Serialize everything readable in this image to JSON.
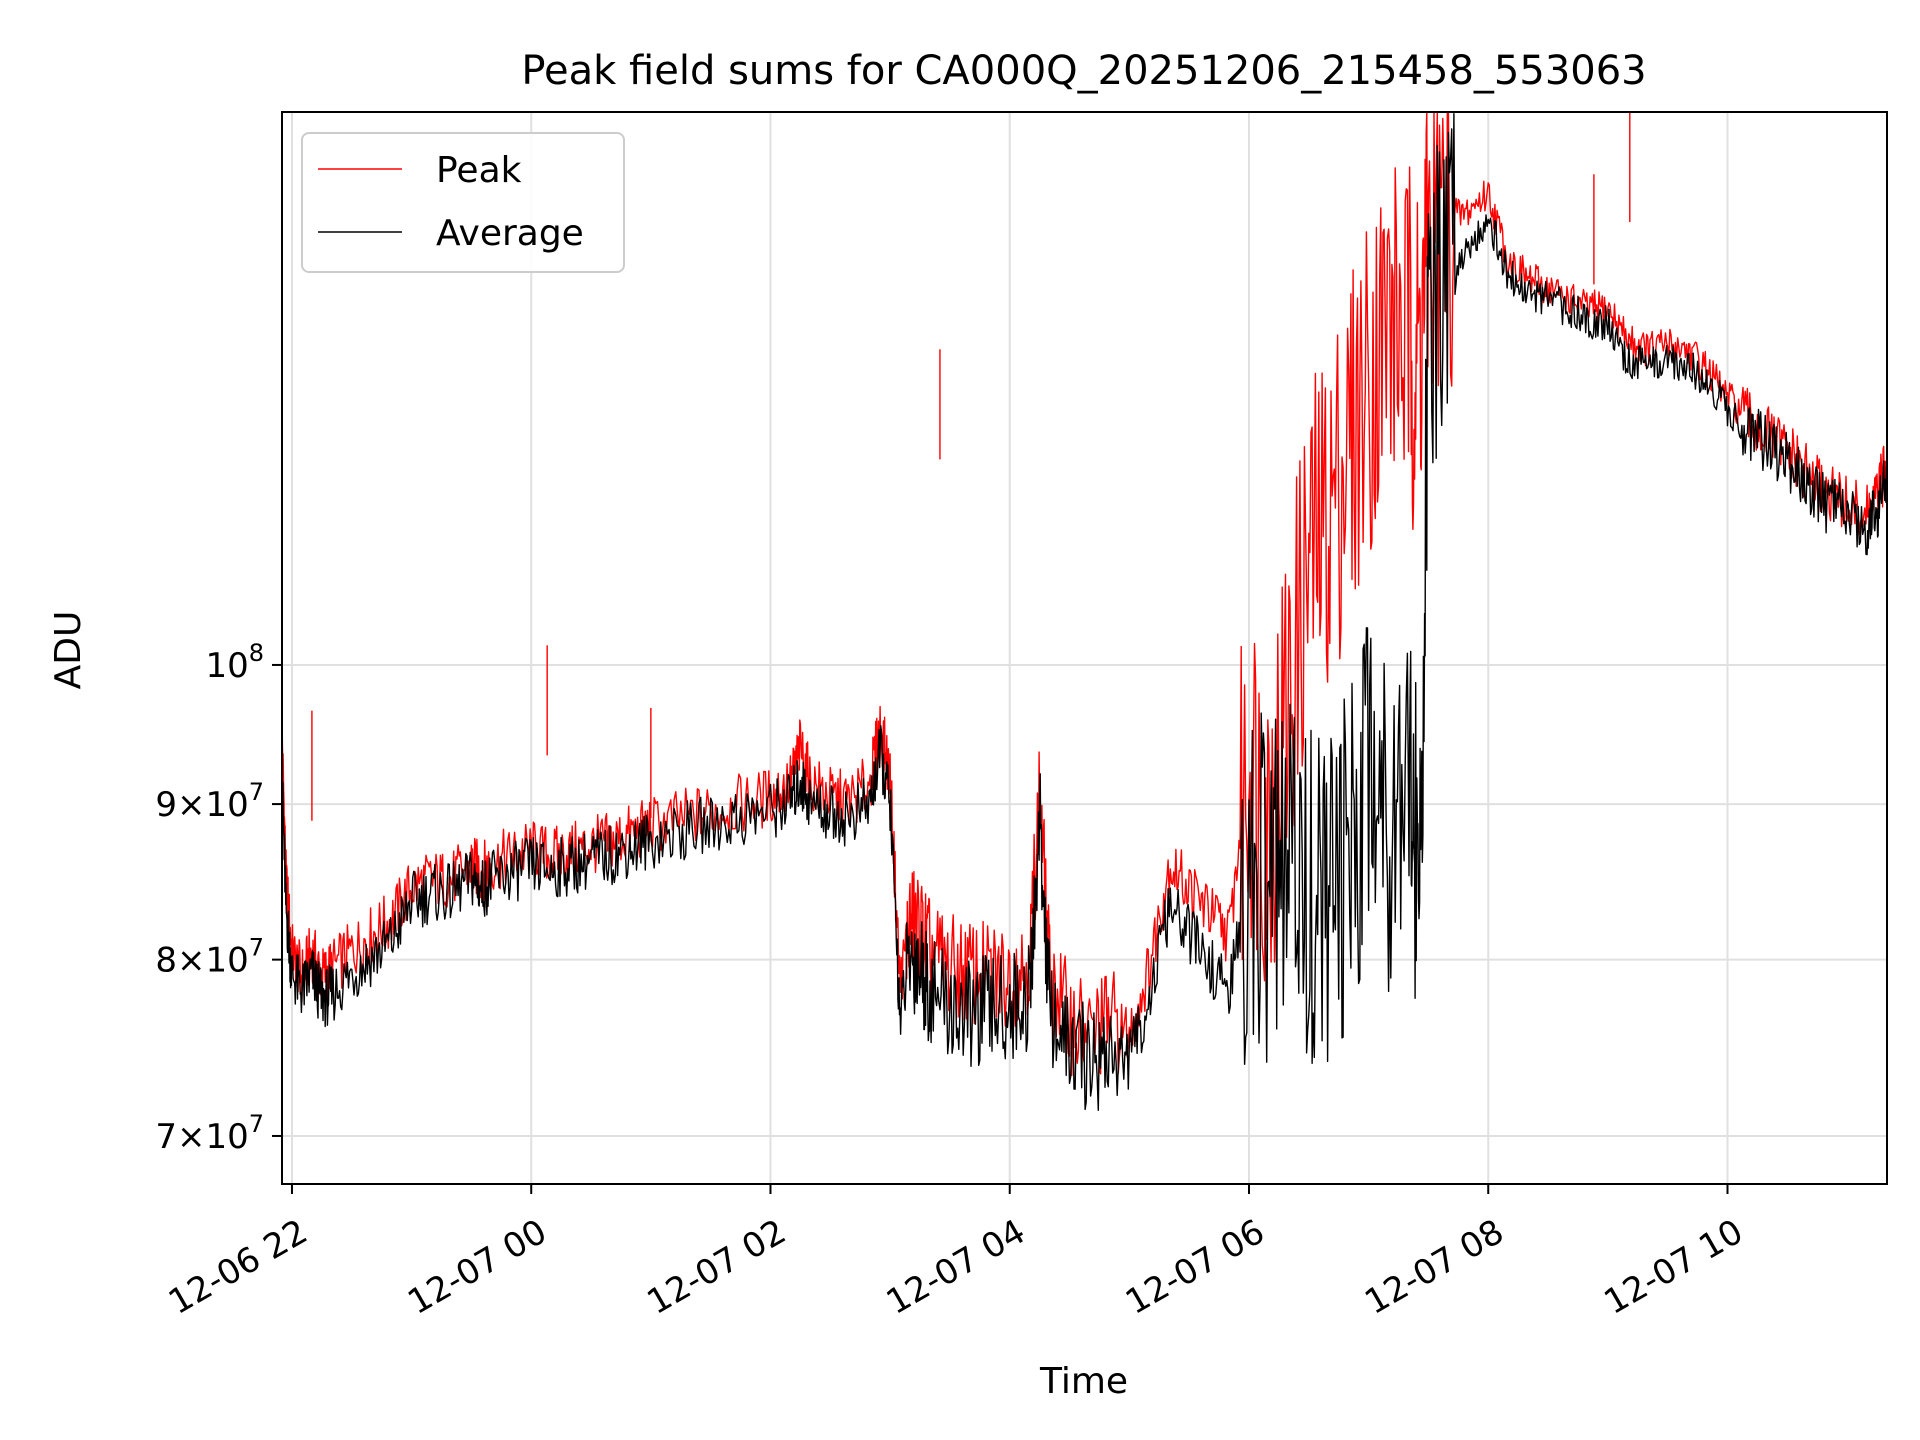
{
  "chart_data": {
    "type": "line",
    "title": "Peak field sums for CA000Q_20251206_215458_553063",
    "xlabel": "Time",
    "ylabel": "ADU",
    "y_scale": "log",
    "grid": true,
    "legend_position": "top-left",
    "xlim": [
      "2025-12-06 21:55",
      "2025-12-07 11:20"
    ],
    "ylim": [
      67500000,
      152000000
    ],
    "x_ticks": [
      {
        "t": "2025-12-06 22:00",
        "label": "12-06 22"
      },
      {
        "t": "2025-12-07 00:00",
        "label": "12-07 00"
      },
      {
        "t": "2025-12-07 02:00",
        "label": "12-07 02"
      },
      {
        "t": "2025-12-07 04:00",
        "label": "12-07 04"
      },
      {
        "t": "2025-12-07 06:00",
        "label": "12-07 06"
      },
      {
        "t": "2025-12-07 08:00",
        "label": "12-07 08"
      },
      {
        "t": "2025-12-07 10:00",
        "label": "12-07 10"
      }
    ],
    "y_ticks": [
      {
        "v": 70000000,
        "mant": "7",
        "exp": "7"
      },
      {
        "v": 80000000,
        "mant": "8",
        "exp": "7"
      },
      {
        "v": 90000000,
        "mant": "9",
        "exp": "7"
      },
      {
        "v": 100000000,
        "mant": "",
        "exp": "8"
      }
    ],
    "series": [
      {
        "name": "Peak",
        "color": "#ff0000",
        "x": [
          "2025-12-06 21:55",
          "2025-12-06 21:57",
          "2025-12-06 22:00",
          "2025-12-06 22:05",
          "2025-12-06 22:10",
          "2025-12-06 22:15",
          "2025-12-06 22:20",
          "2025-12-06 22:30",
          "2025-12-06 22:40",
          "2025-12-06 22:50",
          "2025-12-06 23:00",
          "2025-12-06 23:10",
          "2025-12-06 23:20",
          "2025-12-06 23:30",
          "2025-12-06 23:35",
          "2025-12-06 23:40",
          "2025-12-06 23:50",
          "2025-12-07 00:00",
          "2025-12-07 00:10",
          "2025-12-07 00:20",
          "2025-12-07 00:30",
          "2025-12-07 00:40",
          "2025-12-07 00:50",
          "2025-12-07 01:00",
          "2025-12-07 01:15",
          "2025-12-07 01:30",
          "2025-12-07 01:45",
          "2025-12-07 02:00",
          "2025-12-07 02:10",
          "2025-12-07 02:15",
          "2025-12-07 02:20",
          "2025-12-07 02:30",
          "2025-12-07 02:40",
          "2025-12-07 02:50",
          "2025-12-07 02:55",
          "2025-12-07 03:00",
          "2025-12-07 03:05",
          "2025-12-07 03:10",
          "2025-12-07 03:15",
          "2025-12-07 03:20",
          "2025-12-07 03:30",
          "2025-12-07 03:40",
          "2025-12-07 03:50",
          "2025-12-07 04:00",
          "2025-12-07 04:10",
          "2025-12-07 04:15",
          "2025-12-07 04:20",
          "2025-12-07 04:30",
          "2025-12-07 04:40",
          "2025-12-07 04:50",
          "2025-12-07 05:00",
          "2025-12-07 05:10",
          "2025-12-07 05:20",
          "2025-12-07 05:30",
          "2025-12-07 05:40",
          "2025-12-07 05:50",
          "2025-12-07 06:00",
          "2025-12-07 06:10",
          "2025-12-07 06:20",
          "2025-12-07 06:30",
          "2025-12-07 06:40",
          "2025-12-07 06:50",
          "2025-12-07 07:00",
          "2025-12-07 07:10",
          "2025-12-07 07:20",
          "2025-12-07 07:25",
          "2025-12-07 07:30",
          "2025-12-07 07:40",
          "2025-12-07 07:50",
          "2025-12-07 08:00",
          "2025-12-07 08:10",
          "2025-12-07 08:20",
          "2025-12-07 08:30",
          "2025-12-07 08:40",
          "2025-12-07 08:50",
          "2025-12-07 09:00",
          "2025-12-07 09:10",
          "2025-12-07 09:20",
          "2025-12-07 09:30",
          "2025-12-07 09:40",
          "2025-12-07 09:50",
          "2025-12-07 10:00",
          "2025-12-07 10:10",
          "2025-12-07 10:20",
          "2025-12-07 10:30",
          "2025-12-07 10:40",
          "2025-12-07 10:50",
          "2025-12-07 11:00",
          "2025-12-07 11:10",
          "2025-12-07 11:15",
          "2025-12-07 11:20"
        ],
        "y": [
          95000000,
          85000000,
          80500000,
          79000000,
          80500000,
          79000000,
          79500000,
          80500000,
          81500000,
          82500000,
          84500000,
          85000000,
          85000000,
          86000000,
          85500000,
          86000000,
          86500000,
          87000000,
          86500000,
          86800000,
          87200000,
          87500000,
          88000000,
          88500000,
          89000000,
          89500000,
          90000000,
          90500000,
          91500000,
          94000000,
          91500000,
          90500000,
          90200000,
          91500000,
          95500000,
          92000000,
          78500000,
          82500000,
          82000000,
          80500000,
          79500000,
          79200000,
          79000000,
          79000000,
          80000000,
          91000000,
          79000000,
          76500000,
          75500000,
          76500000,
          75500000,
          79500000,
          86000000,
          84500000,
          83000000,
          81500000,
          93500000,
          89000000,
          97500000,
          108000000,
          112000000,
          118000000,
          124000000,
          130000000,
          128000000,
          126000000,
          138000000,
          140000000,
          141000000,
          143000000,
          136000000,
          134000000,
          133000000,
          132000000,
          131000000,
          131000000,
          128000000,
          127000000,
          127500000,
          127000000,
          125000000,
          122500000,
          120500000,
          119000000,
          117500000,
          115500000,
          114000000,
          112800000,
          112000000,
          113500000,
          116500000
        ]
      },
      {
        "name": "Average",
        "color": "#000000",
        "x": [
          "2025-12-06 21:55",
          "2025-12-06 21:57",
          "2025-12-06 22:00",
          "2025-12-06 22:05",
          "2025-12-06 22:10",
          "2025-12-06 22:15",
          "2025-12-06 22:20",
          "2025-12-06 22:30",
          "2025-12-06 22:40",
          "2025-12-06 22:50",
          "2025-12-06 23:00",
          "2025-12-06 23:10",
          "2025-12-06 23:20",
          "2025-12-06 23:30",
          "2025-12-06 23:35",
          "2025-12-06 23:40",
          "2025-12-06 23:50",
          "2025-12-07 00:00",
          "2025-12-07 00:10",
          "2025-12-07 00:20",
          "2025-12-07 00:30",
          "2025-12-07 00:40",
          "2025-12-07 00:50",
          "2025-12-07 01:00",
          "2025-12-07 01:15",
          "2025-12-07 01:30",
          "2025-12-07 01:45",
          "2025-12-07 02:00",
          "2025-12-07 02:10",
          "2025-12-07 02:15",
          "2025-12-07 02:20",
          "2025-12-07 02:30",
          "2025-12-07 02:40",
          "2025-12-07 02:50",
          "2025-12-07 02:55",
          "2025-12-07 03:00",
          "2025-12-07 03:05",
          "2025-12-07 03:10",
          "2025-12-07 03:15",
          "2025-12-07 03:20",
          "2025-12-07 03:30",
          "2025-12-07 03:40",
          "2025-12-07 03:50",
          "2025-12-07 04:00",
          "2025-12-07 04:10",
          "2025-12-07 04:15",
          "2025-12-07 04:20",
          "2025-12-07 04:30",
          "2025-12-07 04:40",
          "2025-12-07 04:50",
          "2025-12-07 05:00",
          "2025-12-07 05:10",
          "2025-12-07 05:20",
          "2025-12-07 05:30",
          "2025-12-07 05:40",
          "2025-12-07 05:50",
          "2025-12-07 06:00",
          "2025-12-07 06:10",
          "2025-12-07 06:20",
          "2025-12-07 06:30",
          "2025-12-07 06:40",
          "2025-12-07 06:50",
          "2025-12-07 07:00",
          "2025-12-07 07:10",
          "2025-12-07 07:20",
          "2025-12-07 07:25",
          "2025-12-07 07:30",
          "2025-12-07 07:40",
          "2025-12-07 07:50",
          "2025-12-07 08:00",
          "2025-12-07 08:10",
          "2025-12-07 08:20",
          "2025-12-07 08:30",
          "2025-12-07 08:40",
          "2025-12-07 08:50",
          "2025-12-07 09:00",
          "2025-12-07 09:10",
          "2025-12-07 09:20",
          "2025-12-07 09:30",
          "2025-12-07 09:40",
          "2025-12-07 09:50",
          "2025-12-07 10:00",
          "2025-12-07 10:10",
          "2025-12-07 10:20",
          "2025-12-07 10:30",
          "2025-12-07 10:40",
          "2025-12-07 10:50",
          "2025-12-07 11:00",
          "2025-12-07 11:10",
          "2025-12-07 11:15",
          "2025-12-07 11:20"
        ],
        "y": [
          92000000,
          83500000,
          79500000,
          78500000,
          79500000,
          78000000,
          78300000,
          79500000,
          80500000,
          81500000,
          84000000,
          84500000,
          84500000,
          85500000,
          84800000,
          85300000,
          85800000,
          86300000,
          86000000,
          86300000,
          86700000,
          87000000,
          87500000,
          88000000,
          88500000,
          89000000,
          89500000,
          90000000,
          90700000,
          92000000,
          90500000,
          89800000,
          89500000,
          90500000,
          94000000,
          90500000,
          77000000,
          80500000,
          80000000,
          78500000,
          77500000,
          77000000,
          77500000,
          77500000,
          78000000,
          89500000,
          77500000,
          75000000,
          74500000,
          75000000,
          74500000,
          78000000,
          83500000,
          82000000,
          80000000,
          78500000,
          85000000,
          84500000,
          86000000,
          85000000,
          83500000,
          86000000,
          95000000,
          90000000,
          96000000,
          83000000,
          126000000,
          135000000,
          138000000,
          141000000,
          135000000,
          133000000,
          132500000,
          131500000,
          130500000,
          130000000,
          126500000,
          126000000,
          126500000,
          126000000,
          124500000,
          122000000,
          120000000,
          118500000,
          117000000,
          115000000,
          113500000,
          112500000,
          111500000,
          113000000,
          115500000
        ]
      }
    ]
  }
}
